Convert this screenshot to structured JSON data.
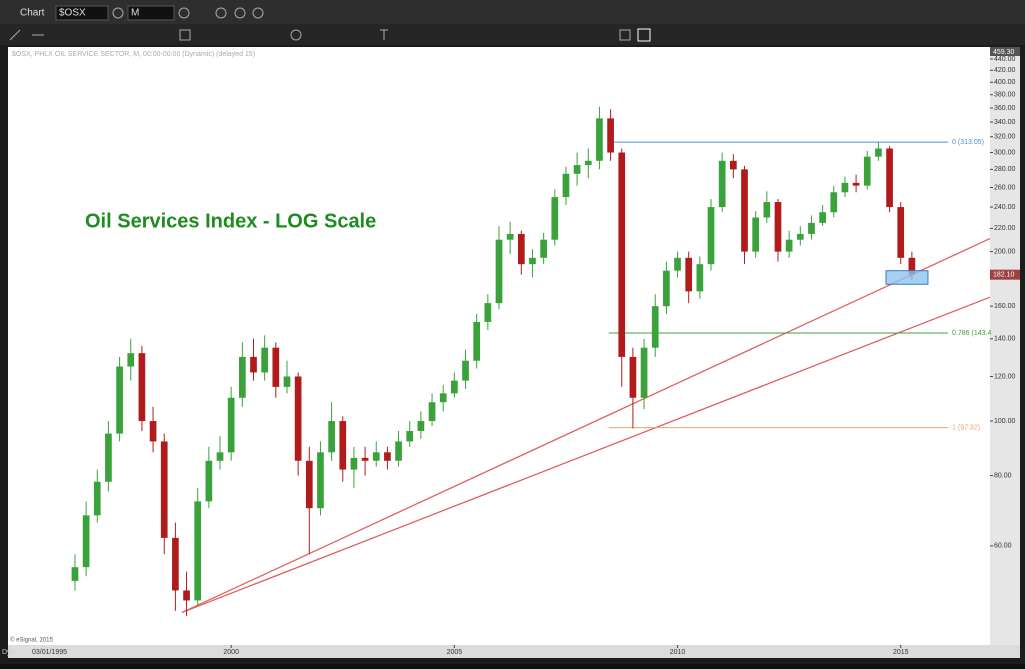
{
  "ui": {
    "window_title": "Chart",
    "symbol": "$OSX",
    "interval": "M",
    "study_header": "$OSX, PHLX OIL SERVICE SECTOR, M, 00:00-00:00 (Dynamic) (delayed 15)",
    "copyright": "© eSignal, 2015",
    "mode": "Dyn",
    "start_date": "03/01/1995",
    "axis_top_label": "459.30",
    "last_price_label": "182.10"
  },
  "chart_data": {
    "type": "candlestick",
    "title": "Oil Services Index - LOG Scale",
    "log_scale": true,
    "up_color": "#3aa23a",
    "down_color": "#b01c1c",
    "x": [
      1996.5,
      1996.75,
      1997,
      1997.25,
      1997.5,
      1997.75,
      1998,
      1998.25,
      1998.5,
      1998.75,
      1999,
      1999.25,
      1999.5,
      1999.75,
      2000,
      2000.25,
      2000.5,
      2000.75,
      2001,
      2001.25,
      2001.5,
      2001.75,
      2002,
      2002.25,
      2002.5,
      2002.75,
      2003,
      2003.25,
      2003.5,
      2003.75,
      2004,
      2004.25,
      2004.5,
      2004.75,
      2005,
      2005.25,
      2005.5,
      2005.75,
      2006,
      2006.25,
      2006.5,
      2006.75,
      2007,
      2007.25,
      2007.5,
      2007.75,
      2008,
      2008.25,
      2008.5,
      2008.75,
      2009,
      2009.25,
      2009.5,
      2009.75,
      2010,
      2010.25,
      2010.5,
      2010.75,
      2011,
      2011.25,
      2011.5,
      2011.75,
      2012,
      2012.25,
      2012.5,
      2012.75,
      2013,
      2013.25,
      2013.5,
      2013.75,
      2014,
      2014.25,
      2014.5,
      2014.75,
      2015,
      2015.25
    ],
    "open": [
      52,
      55,
      68,
      78,
      95,
      125,
      132,
      100,
      92,
      62,
      50,
      48,
      72,
      85,
      88,
      110,
      130,
      122,
      135,
      115,
      120,
      85,
      70,
      88,
      100,
      82,
      86,
      85,
      88,
      85,
      92,
      96,
      100,
      108,
      112,
      118,
      128,
      150,
      162,
      210,
      215,
      190,
      195,
      210,
      250,
      275,
      285,
      290,
      345,
      300,
      130,
      110,
      135,
      160,
      185,
      195,
      170,
      190,
      240,
      290,
      280,
      200,
      230,
      245,
      200,
      210,
      215,
      225,
      235,
      255,
      265,
      262,
      295,
      305,
      240,
      195
    ],
    "high": [
      58,
      72,
      82,
      100,
      130,
      140,
      136,
      106,
      95,
      66,
      54,
      76,
      90,
      94,
      115,
      138,
      140,
      142,
      138,
      128,
      122,
      90,
      92,
      108,
      102,
      90,
      90,
      92,
      90,
      96,
      100,
      104,
      112,
      116,
      122,
      134,
      155,
      168,
      222,
      226,
      218,
      202,
      216,
      258,
      283,
      300,
      305,
      362,
      358,
      305,
      135,
      140,
      168,
      192,
      200,
      200,
      196,
      248,
      300,
      298,
      284,
      236,
      256,
      248,
      218,
      222,
      232,
      242,
      262,
      272,
      274,
      302,
      313,
      308,
      245,
      200
    ],
    "low": [
      50,
      53,
      66,
      75,
      92,
      118,
      96,
      88,
      58,
      46,
      45,
      47,
      70,
      82,
      85,
      106,
      118,
      118,
      110,
      112,
      80,
      58,
      68,
      85,
      78,
      76,
      80,
      83,
      82,
      83,
      90,
      93,
      98,
      104,
      110,
      114,
      124,
      145,
      158,
      198,
      182,
      180,
      190,
      205,
      242,
      262,
      270,
      280,
      290,
      115,
      97,
      105,
      130,
      155,
      180,
      162,
      165,
      185,
      235,
      270,
      190,
      195,
      225,
      192,
      195,
      205,
      210,
      222,
      230,
      250,
      255,
      258,
      290,
      235,
      190,
      178
    ],
    "close": [
      55,
      68,
      78,
      95,
      125,
      132,
      100,
      92,
      62,
      50,
      48,
      72,
      85,
      88,
      110,
      130,
      122,
      135,
      115,
      120,
      85,
      70,
      88,
      100,
      82,
      86,
      85,
      88,
      85,
      92,
      96,
      100,
      108,
      112,
      118,
      128,
      150,
      162,
      210,
      215,
      190,
      195,
      210,
      250,
      275,
      285,
      290,
      345,
      300,
      130,
      110,
      135,
      160,
      185,
      195,
      170,
      190,
      240,
      290,
      280,
      200,
      230,
      245,
      200,
      210,
      215,
      225,
      235,
      255,
      265,
      262,
      295,
      305,
      240,
      195,
      182
    ],
    "xlim": [
      1995,
      2017
    ],
    "ylim": [
      40,
      462
    ],
    "xticks": [
      2000,
      2005,
      2010,
      2015
    ],
    "yticks": [
      {
        "value": 60,
        "label": "60.00"
      },
      {
        "value": 80,
        "label": "80.00"
      },
      {
        "value": 100,
        "label": "100.00"
      },
      {
        "value": 120,
        "label": "120.00"
      },
      {
        "value": 140,
        "label": "140.00"
      },
      {
        "value": 160,
        "label": "160.00"
      },
      {
        "value": 200,
        "label": "200.00"
      },
      {
        "value": 220,
        "label": "220.00"
      },
      {
        "value": 240,
        "label": "240.00"
      },
      {
        "value": 260,
        "label": "260.00"
      },
      {
        "value": 280,
        "label": "280.00"
      },
      {
        "value": 300,
        "label": "300.00"
      },
      {
        "value": 320,
        "label": "320.00"
      },
      {
        "value": 340,
        "label": "340.00"
      },
      {
        "value": 360,
        "label": "360.00"
      },
      {
        "value": 380,
        "label": "380.00"
      },
      {
        "value": 400,
        "label": "400.00"
      },
      {
        "value": 420,
        "label": "420.00"
      },
      {
        "value": 440,
        "label": "440.00"
      }
    ],
    "fib_levels": [
      {
        "value": 313.05,
        "label": "0 (313.05)",
        "color": "#4a90d0"
      },
      {
        "value": 143.4,
        "label": "0.786 (143.4",
        "color": "#3aa23a"
      },
      {
        "value": 97.32,
        "label": "1 (97.32)",
        "color": "#f0a070"
      }
    ],
    "fib_x": [
      2008.46,
      2016.06
    ],
    "trendlines": [
      {
        "x": [
          1998.9,
          2017
        ],
        "y": [
          45.7,
          211
        ],
        "color": "#e06060"
      },
      {
        "x": [
          1998.9,
          2017
        ],
        "y": [
          45.7,
          166
        ],
        "color": "#e06060"
      }
    ],
    "highlight_box": {
      "x": [
        2014.67,
        2015.61
      ],
      "y": [
        175,
        185
      ],
      "color": "#8cc4f0"
    }
  }
}
